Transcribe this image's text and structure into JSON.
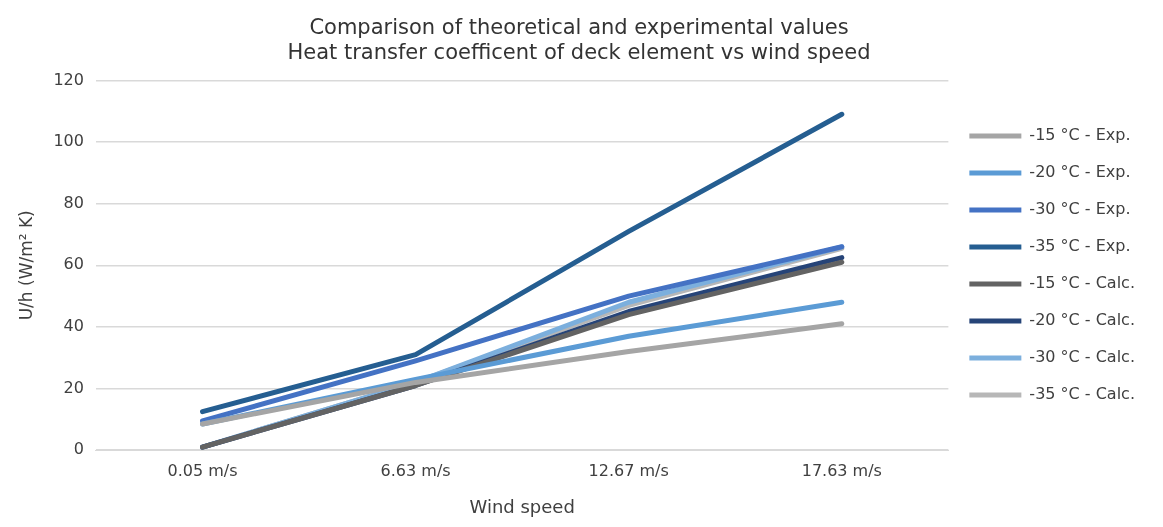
{
  "chart_data": {
    "type": "line",
    "title": [
      "Comparison of theoretical and experimental values",
      "Heat transfer coefficent of deck element vs wind speed"
    ],
    "xlabel": "Wind speed",
    "ylabel": "U/h (W/m² K)",
    "categories": [
      "0.05 m/s",
      "6.63 m/s",
      "12.67 m/s",
      "17.63 m/s"
    ],
    "series": [
      {
        "name": "-15 °C - Exp.",
        "color": "#a5a5a5",
        "values": [
          8.5,
          22,
          32,
          41
        ]
      },
      {
        "name": "-20 °C - Exp.",
        "color": "#5b9bd5",
        "values": [
          8.5,
          23,
          37,
          48
        ]
      },
      {
        "name": "-30 °C - Exp.",
        "color": "#4472c4",
        "values": [
          9.5,
          29,
          50,
          66
        ]
      },
      {
        "name": "-35 °C - Exp.",
        "color": "#255e91",
        "values": [
          12.5,
          31,
          71,
          109
        ]
      },
      {
        "name": "-15 °C - Calc.",
        "color": "#636363",
        "values": [
          1,
          21,
          44,
          61
        ]
      },
      {
        "name": "-20 °C - Calc.",
        "color": "#264478",
        "values": [
          1,
          21,
          45,
          62.5
        ]
      },
      {
        "name": "-30 °C - Calc.",
        "color": "#7cafdd",
        "values": [
          1,
          22,
          48,
          66
        ]
      },
      {
        "name": "-35 °C - Calc.",
        "color": "#b7b7b7",
        "values": [
          1,
          22,
          47,
          65.5
        ]
      }
    ],
    "ylim": [
      0,
      120
    ],
    "yticks": [
      0,
      20,
      40,
      60,
      80,
      100,
      120
    ],
    "grid": "y",
    "legend": "right",
    "marker": "none",
    "line_style": "solid"
  }
}
